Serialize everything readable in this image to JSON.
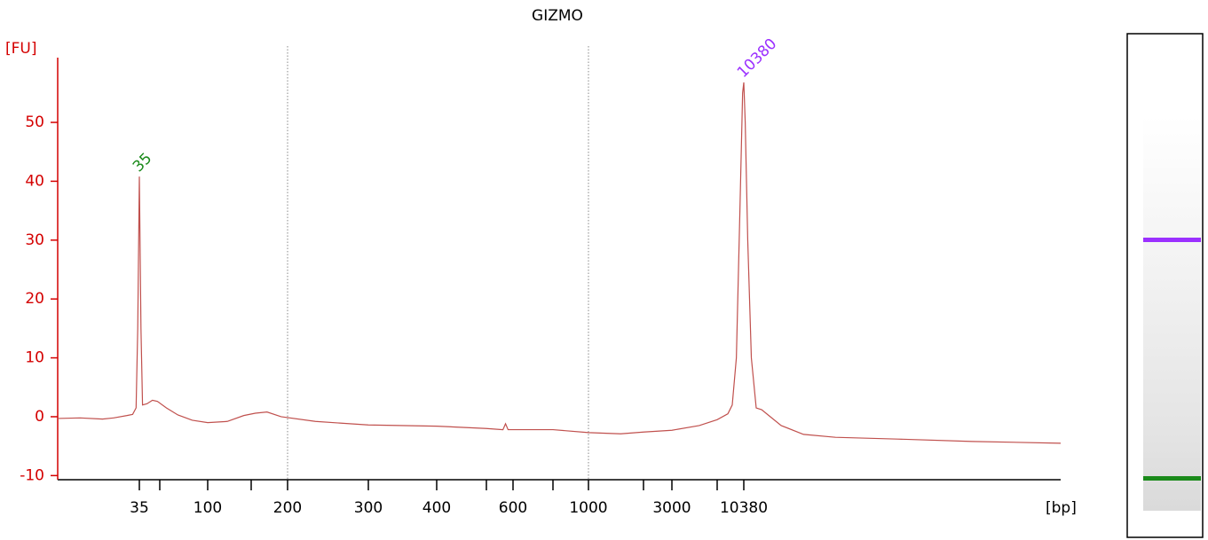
{
  "chart_data": {
    "type": "line",
    "title": "GIZMO",
    "y_label": "[FU]",
    "x_label": "[bp]",
    "color": "#c0504d",
    "x": [
      8,
      12,
      18,
      22,
      28,
      31,
      33,
      34,
      35,
      36,
      37,
      40,
      44,
      48,
      55,
      65,
      80,
      100,
      120,
      140,
      155,
      170,
      190,
      230,
      300,
      400,
      500,
      560,
      570,
      580,
      700,
      1000,
      1500,
      2000,
      3000,
      5000,
      7000,
      8200,
      8750,
      9300,
      9800,
      10200,
      10380,
      10600,
      11000,
      11600,
      12460,
      13500,
      15000,
      18000,
      25000,
      40000,
      100000,
      300000,
      1100000
    ],
    "values": [
      -0.3,
      -0.2,
      -0.4,
      -0.2,
      0.2,
      0.4,
      1.5,
      15,
      40.8,
      15,
      2.0,
      2.2,
      2.8,
      2.6,
      1.5,
      0.3,
      -0.6,
      -1.0,
      -0.8,
      0.2,
      0.6,
      0.8,
      0.0,
      -0.8,
      -1.4,
      -1.6,
      -2.0,
      -2.2,
      -1.2,
      -2.2,
      -2.2,
      -2.7,
      -2.9,
      -2.6,
      -2.3,
      -1.5,
      -0.5,
      0.5,
      2,
      10,
      35,
      55,
      56.8,
      50,
      30,
      10,
      1.5,
      1.2,
      0.2,
      -1.5,
      -3.0,
      -3.5,
      -3.8,
      -4.2,
      -4.5
    ],
    "xlim": [
      8,
      1100000
    ],
    "xticks": [
      35,
      {
        "value": 50,
        "label": null
      },
      100,
      {
        "value": 150,
        "label": null
      },
      200,
      300,
      400,
      {
        "value": 500,
        "label": null
      },
      600,
      {
        "value": 700,
        "label": null
      },
      1000,
      {
        "value": 2000,
        "label": null
      },
      3000,
      {
        "value": 7000,
        "label": null
      },
      10380
    ],
    "ylim": [
      -10.7,
      61
    ],
    "yticks": [
      -10,
      0,
      10,
      20,
      30,
      40,
      50
    ],
    "vlines": [
      200,
      1000
    ],
    "peaks": [
      {
        "x": 35,
        "y": 40.8,
        "color": "#1a8a1a"
      },
      {
        "x": 10380,
        "y": 56.8,
        "color": "#9b30ff"
      }
    ]
  }
}
